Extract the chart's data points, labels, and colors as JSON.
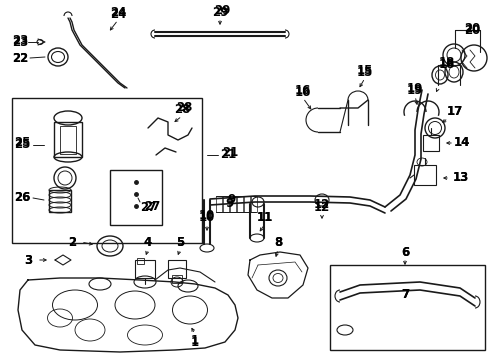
{
  "bg_color": "#ffffff",
  "line_color": "#1a1a1a",
  "figsize": [
    4.89,
    3.6
  ],
  "dpi": 100,
  "parts": {
    "label_fontsize": 8.5,
    "label_fontweight": "bold"
  }
}
